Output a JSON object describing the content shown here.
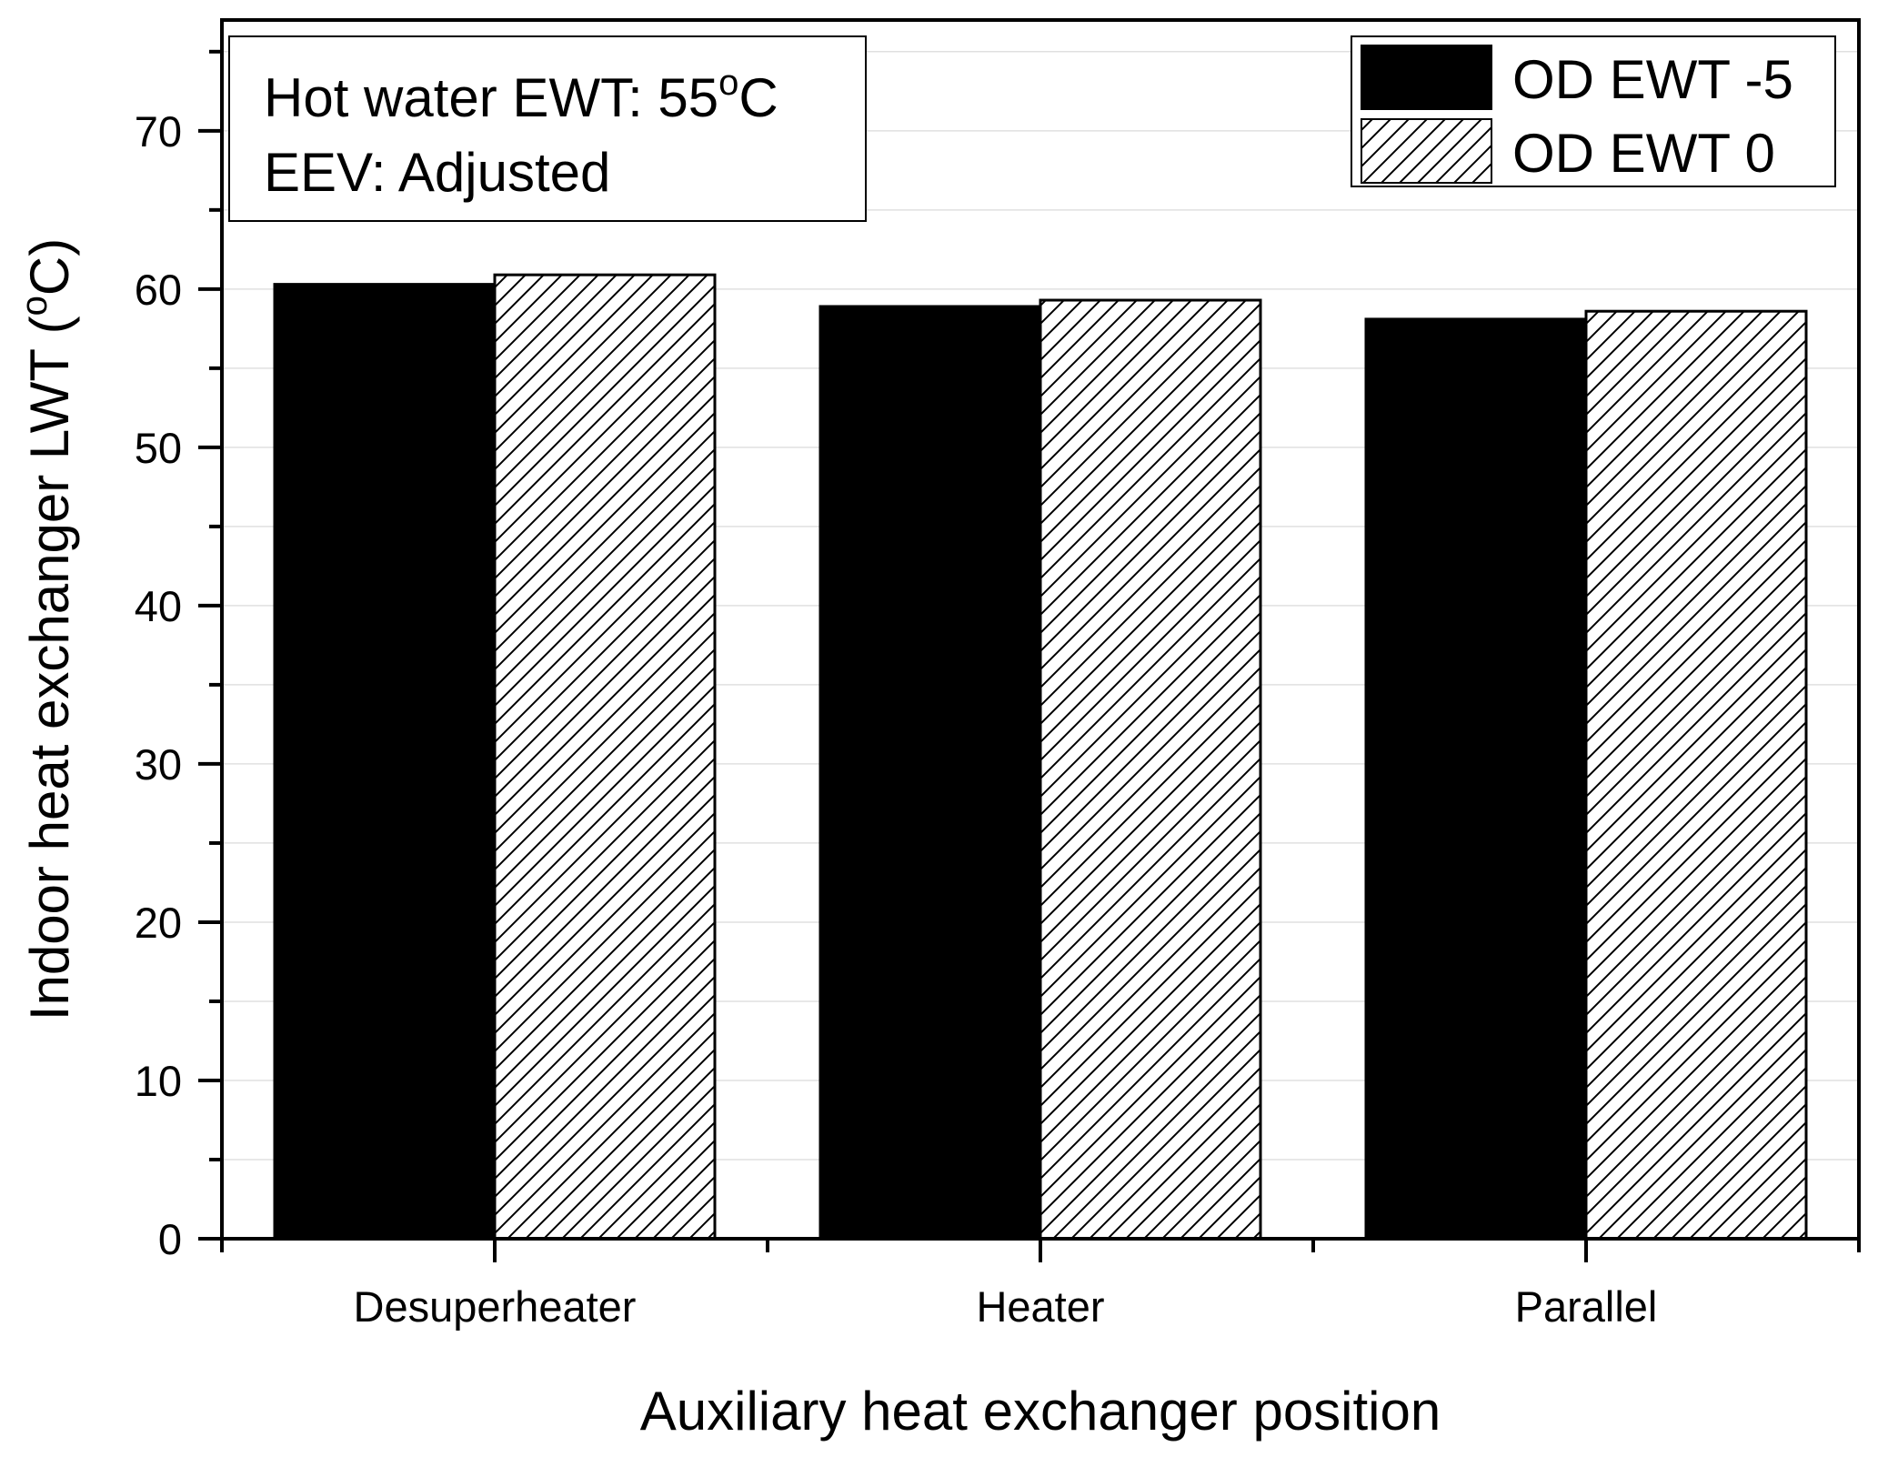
{
  "chart_data": {
    "type": "bar",
    "xlabel": "Auxiliary heat exchanger position",
    "ylabel_main": "Indoor heat exchanger LWT (",
    "ylabel_sup": "o",
    "ylabel_end": "C)",
    "categories": [
      "Desuperheater",
      "Heater",
      "Parallel"
    ],
    "series": [
      {
        "name": "OD EWT -5",
        "values": [
          60.3,
          58.9,
          58.1
        ],
        "fill": "solid",
        "color": "#000000"
      },
      {
        "name": "OD EWT 0",
        "values": [
          60.9,
          59.3,
          58.6
        ],
        "fill": "hatch",
        "color": "#ffffff"
      }
    ],
    "ylim": [
      0,
      77
    ],
    "yticks": [
      0,
      10,
      20,
      30,
      40,
      50,
      60,
      70
    ],
    "grid": true,
    "legend_position": "top-right",
    "annotation": {
      "line1_main": "Hot water EWT: 55",
      "line1_sup": "o",
      "line1_end": "C",
      "line2": "EEV: Adjusted",
      "position": "top-left"
    }
  }
}
